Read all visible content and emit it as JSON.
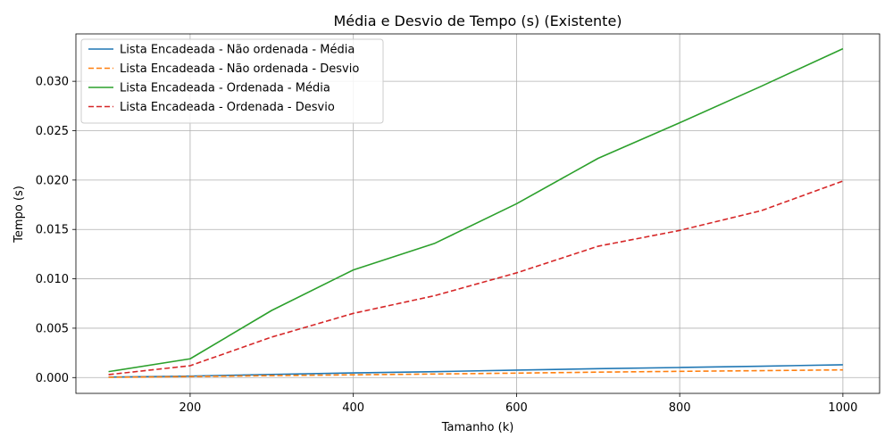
{
  "chart_data": {
    "type": "line",
    "title": "Média e Desvio de Tempo (s) (Existente)",
    "xlabel": "Tamanho (k)",
    "ylabel": "Tempo (s)",
    "xlim": [
      60,
      1045
    ],
    "ylim": [
      -0.0016,
      0.0348
    ],
    "xticks": [
      200,
      400,
      600,
      800,
      1000
    ],
    "yticks": [
      0.0,
      0.005,
      0.01,
      0.015,
      0.02,
      0.025,
      0.03
    ],
    "ytick_labels": [
      "0.000",
      "0.005",
      "0.010",
      "0.015",
      "0.020",
      "0.025",
      "0.030"
    ],
    "grid": true,
    "legend_position": "top-left",
    "x": [
      100,
      200,
      300,
      400,
      500,
      600,
      700,
      800,
      900,
      1000
    ],
    "series": [
      {
        "name": "Lista Encadeada - Não ordenada - Média",
        "color": "#1f77b4",
        "dash": "solid",
        "values": [
          5e-05,
          0.00015,
          0.00032,
          0.00047,
          0.0006,
          0.00075,
          0.0009,
          0.00102,
          0.00115,
          0.0013
        ]
      },
      {
        "name": "Lista Encadeada - Não ordenada - Desvio",
        "color": "#ff7f0e",
        "dash": "dashed",
        "values": [
          3e-05,
          0.0001,
          0.0002,
          0.00028,
          0.00036,
          0.00045,
          0.00055,
          0.00063,
          0.0007,
          0.00078
        ]
      },
      {
        "name": "Lista Encadeada - Ordenada - Média",
        "color": "#2ca02c",
        "dash": "solid",
        "values": [
          0.0006,
          0.0019,
          0.0068,
          0.0109,
          0.0136,
          0.0176,
          0.0222,
          0.0258,
          0.0295,
          0.0333
        ]
      },
      {
        "name": "Lista Encadeada - Ordenada - Desvio",
        "color": "#d62728",
        "dash": "dashed",
        "values": [
          0.0003,
          0.0012,
          0.0041,
          0.0065,
          0.0083,
          0.0106,
          0.0133,
          0.0149,
          0.0169,
          0.0199
        ]
      }
    ]
  }
}
